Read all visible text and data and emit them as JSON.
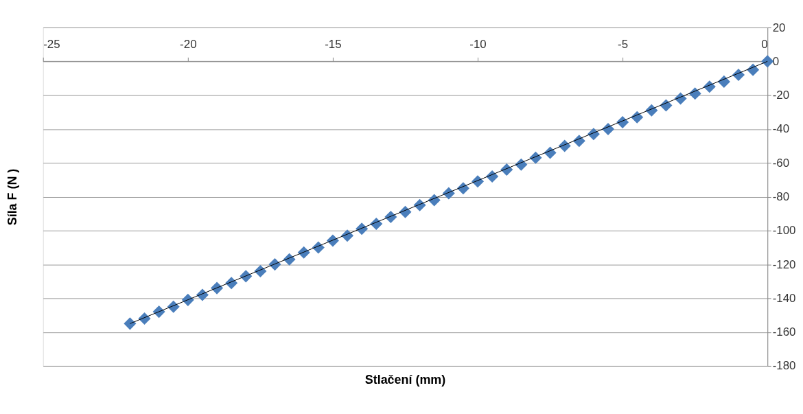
{
  "chart_data": {
    "type": "scatter",
    "xlabel": "Stlačení (mm)",
    "ylabel": "Síla F (N )",
    "xlim": [
      -25,
      0
    ],
    "xticks": [
      -25,
      -20,
      -15,
      -10,
      -5,
      0
    ],
    "ylim": [
      -180,
      20
    ],
    "yticks": [
      -180,
      -160,
      -140,
      -120,
      -100,
      -80,
      -60,
      -40,
      -20,
      0,
      20
    ],
    "grid": "y",
    "marker": "diamond",
    "series": [
      {
        "color": "#4a7ebb",
        "x": [
          -22,
          -21.5,
          -21,
          -20.5,
          -20,
          -19.5,
          -19,
          -18.5,
          -18,
          -17.5,
          -17,
          -16.5,
          -16,
          -15.5,
          -15,
          -14.5,
          -14,
          -13.5,
          -13,
          -12.5,
          -12,
          -11.5,
          -11,
          -10.5,
          -10,
          -9.5,
          -9,
          -8.5,
          -8,
          -7.5,
          -7,
          -6.5,
          -6,
          -5.5,
          -5,
          -4.5,
          -4,
          -3.5,
          -3,
          -2.5,
          -2,
          -1.5,
          -1,
          -0.5,
          0
        ],
        "values": [
          -155,
          -152,
          -148,
          -145,
          -141,
          -138,
          -134,
          -131,
          -127,
          -124,
          -120,
          -117,
          -113,
          -110,
          -106,
          -103,
          -99,
          -96,
          -92,
          -89,
          -85,
          -82,
          -78,
          -75,
          -71,
          -68,
          -64,
          -61,
          -57,
          -54,
          -50,
          -47,
          -43,
          -40,
          -36,
          -33,
          -29,
          -26,
          -22,
          -19,
          -15,
          -12,
          -8,
          -5,
          0
        ]
      },
      {
        "type": "line",
        "marker": "none",
        "line_style": "solid",
        "color": "#000000",
        "x": [
          -22,
          0
        ],
        "values": [
          -155,
          0
        ]
      }
    ]
  }
}
